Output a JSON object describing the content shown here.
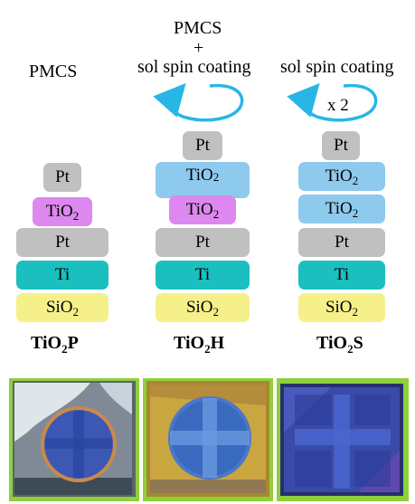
{
  "headers": {
    "col1": "PMCS",
    "col2_line1": "PMCS",
    "col2_plus": "+",
    "col2_line3": "sol spin coating",
    "col3": "sol spin coating",
    "repeat": "x 2"
  },
  "stack_p": {
    "layers": [
      "Pt",
      "TiO",
      "Pt",
      "Ti",
      "SiO"
    ],
    "label_main": "TiO",
    "label_sub": "2",
    "label_suffix": "P"
  },
  "stack_h": {
    "layers": [
      "Pt",
      "TiO",
      "TiO",
      "Pt",
      "Ti",
      "SiO"
    ],
    "label_main": "TiO",
    "label_sub": "2",
    "label_suffix": "H"
  },
  "stack_s": {
    "layers": [
      "Pt",
      "TiO",
      "TiO",
      "Pt",
      "Ti",
      "SiO"
    ],
    "label_main": "TiO",
    "label_sub": "2",
    "label_suffix": "S"
  },
  "subscript": "2",
  "colors": {
    "pt": "#c0c0c0",
    "tio2_pmcs": "#dd88ee",
    "tio2_sol": "#8ec9ee",
    "ti": "#1bbfbf",
    "sio2": "#f5f08a",
    "arrow": "#29b6e6",
    "photo_border": "#8fcf3a"
  }
}
